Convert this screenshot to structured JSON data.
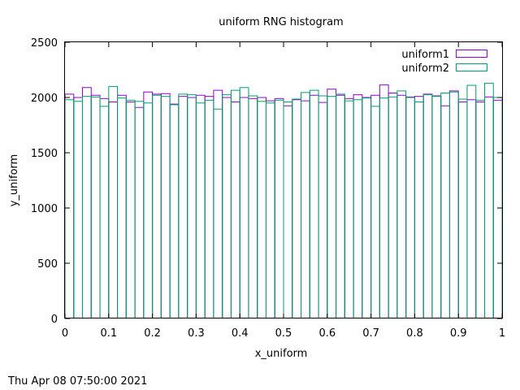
{
  "chart_data": {
    "type": "bar",
    "title": "uniform RNG histogram",
    "xlabel": "x_uniform",
    "ylabel": "y_uniform",
    "xlim": [
      0,
      1
    ],
    "ylim": [
      0,
      2500
    ],
    "xticks": [
      "0",
      "0.1",
      "0.2",
      "0.3",
      "0.4",
      "0.5",
      "0.6",
      "0.7",
      "0.8",
      "0.9",
      "1"
    ],
    "yticks": [
      "0",
      "500",
      "1000",
      "1500",
      "2000",
      "2500"
    ],
    "grid": false,
    "legend_position": "top-right",
    "bin_width": 0.02,
    "x": [
      0.0,
      0.02,
      0.04,
      0.06,
      0.08,
      0.1,
      0.12,
      0.14,
      0.16,
      0.18,
      0.2,
      0.22,
      0.24,
      0.26,
      0.28,
      0.3,
      0.32,
      0.34,
      0.36,
      0.38,
      0.4,
      0.42,
      0.44,
      0.46,
      0.48,
      0.5,
      0.52,
      0.54,
      0.56,
      0.58,
      0.6,
      0.62,
      0.64,
      0.66,
      0.68,
      0.7,
      0.72,
      0.74,
      0.76,
      0.78,
      0.8,
      0.82,
      0.84,
      0.86,
      0.88,
      0.9,
      0.92,
      0.94,
      0.96,
      0.98
    ],
    "series": [
      {
        "name": "uniform1",
        "color": "#9400d3",
        "values": [
          2030,
          2000,
          2090,
          2020,
          1990,
          1960,
          2020,
          1960,
          1910,
          2050,
          2030,
          2035,
          1940,
          2010,
          2000,
          2020,
          2010,
          2065,
          2000,
          1960,
          2000,
          1990,
          2000,
          1970,
          1990,
          1925,
          1980,
          1970,
          2020,
          1955,
          2075,
          2020,
          1990,
          2025,
          2000,
          2020,
          2115,
          2040,
          2020,
          2005,
          2010,
          2030,
          2015,
          1925,
          2060,
          1960,
          1980,
          1960,
          2005,
          1975
        ]
      },
      {
        "name": "uniform2",
        "color": "#009e73",
        "values": [
          1980,
          1965,
          2010,
          2005,
          1920,
          2100,
          1995,
          1975,
          1965,
          1950,
          2020,
          2010,
          1935,
          2030,
          2025,
          1950,
          1975,
          1895,
          2025,
          2065,
          2090,
          2015,
          1965,
          1950,
          1975,
          1960,
          1985,
          2045,
          2065,
          2015,
          2010,
          2030,
          1970,
          1980,
          1995,
          1920,
          1995,
          2005,
          2060,
          2000,
          1960,
          2025,
          2010,
          2040,
          2050,
          1985,
          2110,
          1975,
          2130,
          2000
        ]
      }
    ]
  },
  "timestamp": "Thu Apr 08 07:50:00 2021"
}
